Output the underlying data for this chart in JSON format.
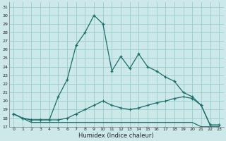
{
  "xlabel": "Humidex (Indice chaleur)",
  "bg_color": "#cce8e8",
  "grid_color": "#99cccc",
  "line_color": "#1a6e6a",
  "xlim": [
    -0.5,
    23.5
  ],
  "ylim": [
    17,
    31.5
  ],
  "yticks": [
    17,
    18,
    19,
    20,
    21,
    22,
    23,
    24,
    25,
    26,
    27,
    28,
    29,
    30,
    31
  ],
  "xticks": [
    0,
    1,
    2,
    3,
    4,
    5,
    6,
    7,
    8,
    9,
    10,
    11,
    12,
    13,
    14,
    15,
    16,
    17,
    18,
    19,
    20,
    21,
    22,
    23
  ],
  "curve1": [
    18.5,
    18.0,
    17.8,
    17.8,
    17.8,
    20.5,
    22.5,
    26.5,
    28.0,
    30.0,
    29.0,
    23.5,
    25.2,
    23.8,
    25.5,
    24.0,
    23.5,
    22.8,
    22.3,
    21.0,
    20.5,
    19.5,
    17.2,
    17.2
  ],
  "curve2": [
    18.5,
    18.0,
    17.8,
    17.8,
    17.8,
    17.8,
    18.0,
    18.5,
    19.0,
    19.5,
    20.0,
    19.5,
    19.2,
    19.0,
    19.2,
    19.5,
    19.8,
    20.0,
    20.3,
    20.5,
    20.3,
    19.5,
    17.2,
    17.2
  ],
  "curve3": [
    18.5,
    18.0,
    17.5,
    17.5,
    17.5,
    17.5,
    17.5,
    17.5,
    17.5,
    17.5,
    17.5,
    17.5,
    17.5,
    17.5,
    17.5,
    17.5,
    17.5,
    17.5,
    17.5,
    17.5,
    17.5,
    17.0,
    17.0,
    17.0
  ]
}
